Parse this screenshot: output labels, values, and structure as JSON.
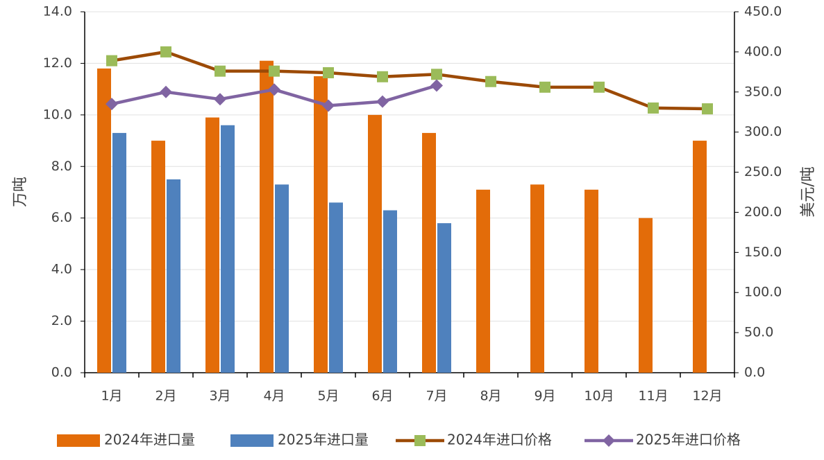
{
  "chart_data": {
    "type": "bar-line",
    "y_label": "万吨",
    "y2_label": "美元/吨",
    "categories": [
      "1月",
      "2月",
      "3月",
      "4月",
      "5月",
      "6月",
      "7月",
      "8月",
      "9月",
      "10月",
      "11月",
      "12月"
    ],
    "series": [
      {
        "name": "2024年进口量",
        "type": "bar",
        "color": "#e36c09",
        "values": [
          11.8,
          9.0,
          9.9,
          12.1,
          11.5,
          10.0,
          9.3,
          7.1,
          7.3,
          7.1,
          6.0,
          9.0
        ]
      },
      {
        "name": "2025年进口量",
        "type": "bar",
        "color": "#4f81bd",
        "values": [
          9.3,
          7.5,
          9.6,
          7.3,
          6.6,
          6.3,
          5.8,
          null,
          null,
          null,
          null,
          null
        ]
      },
      {
        "name": "2024年进口价格",
        "type": "line",
        "axis": "y2",
        "color": "#9c4a06",
        "marker": "square",
        "marker_color": "#9bbb59",
        "values": [
          389,
          400,
          376,
          376,
          374,
          369,
          372,
          363,
          356,
          356,
          330,
          329
        ]
      },
      {
        "name": "2025年进口价格",
        "type": "line",
        "axis": "y2",
        "color": "#8064a2",
        "marker": "diamond",
        "marker_color": "#8064a2",
        "values": [
          335,
          350,
          341,
          353,
          333,
          338,
          358,
          null,
          null,
          null,
          null,
          null
        ]
      }
    ],
    "ylim": [
      0,
      14
    ],
    "yticks": [
      {
        "value": 0,
        "label": "0.0"
      },
      {
        "value": 2,
        "label": "2.0"
      },
      {
        "value": 4,
        "label": "4.0"
      },
      {
        "value": 6,
        "label": "6.0"
      },
      {
        "value": 8,
        "label": "8.0"
      },
      {
        "value": 10,
        "label": "10.0"
      },
      {
        "value": 12,
        "label": "12.0"
      },
      {
        "value": 14,
        "label": "14.0"
      }
    ],
    "y2lim": [
      0,
      450
    ],
    "y2ticks": [
      {
        "value": 0,
        "label": "0.0"
      },
      {
        "value": 50,
        "label": "50.0"
      },
      {
        "value": 100,
        "label": "100.0"
      },
      {
        "value": 150,
        "label": "150.0"
      },
      {
        "value": 200,
        "label": "200.0"
      },
      {
        "value": 250,
        "label": "250.0"
      },
      {
        "value": 300,
        "label": "300.0"
      },
      {
        "value": 350,
        "label": "350.0"
      },
      {
        "value": 400,
        "label": "400.0"
      },
      {
        "value": 450,
        "label": "450.0"
      }
    ],
    "grid": true,
    "legend": "bottom"
  }
}
